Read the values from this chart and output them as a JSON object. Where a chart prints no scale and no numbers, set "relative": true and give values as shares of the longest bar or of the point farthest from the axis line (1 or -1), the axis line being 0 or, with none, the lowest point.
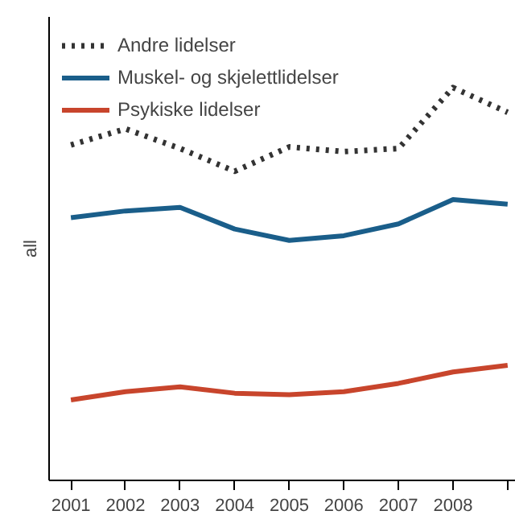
{
  "chart_data": {
    "type": "line",
    "relative": true,
    "ylabel": "all",
    "categories": [
      "2001",
      "2002",
      "2003",
      "2004",
      "2005",
      "2006",
      "2007",
      "2008",
      null
    ],
    "series": [
      {
        "name": "Andre lidelser",
        "color": "#333333",
        "line_style": "dotted",
        "values": [
          0.854,
          0.895,
          0.845,
          0.787,
          0.849,
          0.837,
          0.845,
          1,
          0.937
        ]
      },
      {
        "name": "Muskel- og skjelettlidelser",
        "color": "#1a5e8a",
        "values": [
          0.669,
          0.686,
          0.695,
          0.64,
          0.611,
          0.623,
          0.653,
          0.715,
          0.703
        ]
      },
      {
        "name": "Psykiske lidelser",
        "color": "#c8452c",
        "values": [
          0.205,
          0.226,
          0.238,
          0.222,
          0.218,
          0.226,
          0.247,
          0.276,
          0.293
        ]
      }
    ],
    "legend": "top left",
    "grid": false,
    "marker": "none"
  }
}
